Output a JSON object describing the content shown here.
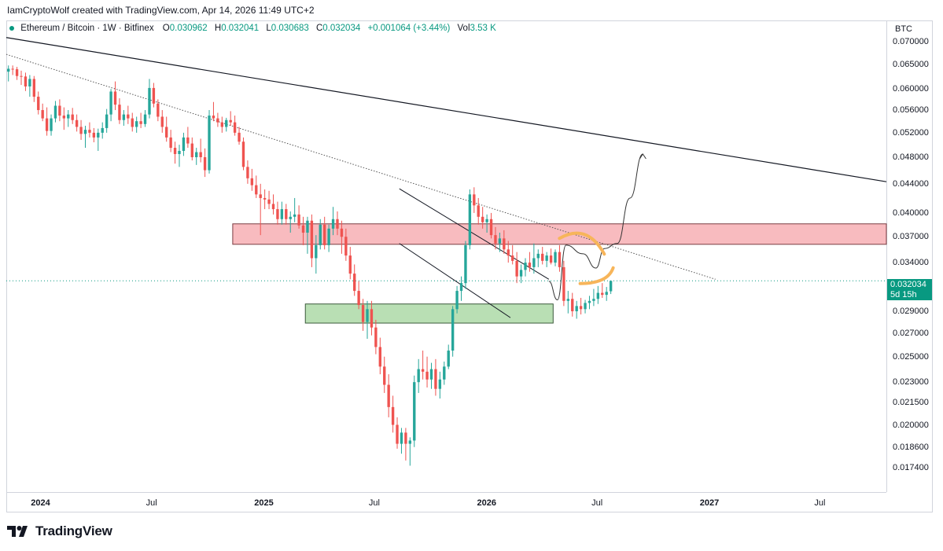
{
  "header": {
    "credit": "IamCryptoWolf created with TradingView.com, Apr 14, 2026 11:49 UTC+2"
  },
  "legend": {
    "symbol": "Ethereum / Bitcoin · 1W · Bitfinex",
    "open_label": "O",
    "open": "0.030962",
    "high_label": "H",
    "high": "0.032041",
    "low_label": "L",
    "low": "0.030683",
    "close_label": "C",
    "close": "0.032034",
    "change": "+0.001064 (+3.44%)",
    "vol_label": "Vol",
    "vol": "3.53 K"
  },
  "price_scale": {
    "unit": "BTC",
    "last_price": "0.032034",
    "countdown": "5d 15h"
  },
  "brand": {
    "name": "TradingView"
  },
  "colors": {
    "up": "#26a69a",
    "down": "#ef5350",
    "accent": "#089981",
    "resistance": "#f8bbbf",
    "support": "#b9dfb4",
    "highlight": "#f7b55a"
  },
  "chart_data": {
    "type": "candlestick",
    "title": "Ethereum / Bitcoin · 1W · Bitfinex",
    "ylabel": "BTC",
    "y_scale": "log",
    "ylim": [
      0.0166,
      0.0715
    ],
    "y_ticks": [
      "0.070000",
      "0.065000",
      "0.060000",
      "0.056000",
      "0.052000",
      "0.048000",
      "0.044000",
      "0.040000",
      "0.037000",
      "0.034000",
      "0.029000",
      "0.027000",
      "0.025000",
      "0.023000",
      "0.021500",
      "0.020000",
      "0.018600",
      "0.017400"
    ],
    "x_range": [
      "2023-11-06",
      "2027-10-18"
    ],
    "x_ticks": [
      {
        "label": "2024",
        "date": "2024-01-01",
        "bold": true
      },
      {
        "label": "Jul",
        "date": "2024-07-01",
        "bold": false
      },
      {
        "label": "2025",
        "date": "2025-01-01",
        "bold": true
      },
      {
        "label": "Jul",
        "date": "2025-07-01",
        "bold": false
      },
      {
        "label": "2026",
        "date": "2026-01-01",
        "bold": true
      },
      {
        "label": "Jul",
        "date": "2026-07-01",
        "bold": false
      },
      {
        "label": "2027",
        "date": "2027-01-01",
        "bold": true
      },
      {
        "label": "Jul",
        "date": "2027-07-01",
        "bold": false
      }
    ],
    "candles_start": "2023-11-06",
    "candles_interval_days": 7,
    "candles_ohlc": [
      [
        0.0635,
        0.0648,
        0.0615,
        0.0641
      ],
      [
        0.0641,
        0.0648,
        0.0628,
        0.064
      ],
      [
        0.064,
        0.0645,
        0.0618,
        0.0626
      ],
      [
        0.0626,
        0.0637,
        0.0608,
        0.0625
      ],
      [
        0.0625,
        0.0633,
        0.0596,
        0.0605
      ],
      [
        0.0605,
        0.0628,
        0.0585,
        0.062
      ],
      [
        0.062,
        0.0626,
        0.0575,
        0.0585
      ],
      [
        0.0585,
        0.0595,
        0.0552,
        0.056
      ],
      [
        0.056,
        0.0572,
        0.054,
        0.0545
      ],
      [
        0.0545,
        0.0565,
        0.0515,
        0.0523
      ],
      [
        0.0523,
        0.0552,
        0.0515,
        0.0545
      ],
      [
        0.0545,
        0.0577,
        0.0538,
        0.0568
      ],
      [
        0.0568,
        0.058,
        0.054,
        0.055
      ],
      [
        0.055,
        0.0565,
        0.0525,
        0.0545
      ],
      [
        0.0545,
        0.056,
        0.053,
        0.0552
      ],
      [
        0.0552,
        0.0564,
        0.0535,
        0.0542
      ],
      [
        0.0542,
        0.0552,
        0.0522,
        0.053
      ],
      [
        0.053,
        0.0542,
        0.0508,
        0.0518
      ],
      [
        0.0518,
        0.0532,
        0.0495,
        0.0525
      ],
      [
        0.0525,
        0.0538,
        0.0512,
        0.052
      ],
      [
        0.052,
        0.0528,
        0.0504,
        0.0512
      ],
      [
        0.0512,
        0.0527,
        0.049,
        0.052
      ],
      [
        0.052,
        0.0538,
        0.051,
        0.0528
      ],
      [
        0.0528,
        0.0562,
        0.052,
        0.0552
      ],
      [
        0.0552,
        0.06,
        0.054,
        0.0595
      ],
      [
        0.0595,
        0.0615,
        0.056,
        0.057
      ],
      [
        0.057,
        0.0582,
        0.0535,
        0.0542
      ],
      [
        0.0542,
        0.056,
        0.0532,
        0.0552
      ],
      [
        0.0552,
        0.0568,
        0.0535,
        0.0545
      ],
      [
        0.0545,
        0.0555,
        0.0522,
        0.053
      ],
      [
        0.053,
        0.0548,
        0.052,
        0.054
      ],
      [
        0.054,
        0.0555,
        0.0528,
        0.0535
      ],
      [
        0.0535,
        0.056,
        0.053,
        0.0552
      ],
      [
        0.0552,
        0.062,
        0.0545,
        0.0602
      ],
      [
        0.0602,
        0.0612,
        0.0565,
        0.0572
      ],
      [
        0.0572,
        0.058,
        0.054,
        0.0548
      ],
      [
        0.0548,
        0.056,
        0.052,
        0.053
      ],
      [
        0.053,
        0.0548,
        0.0505,
        0.0512
      ],
      [
        0.0512,
        0.0525,
        0.0488,
        0.0495
      ],
      [
        0.0495,
        0.0505,
        0.047,
        0.0485
      ],
      [
        0.0485,
        0.05,
        0.0465,
        0.049
      ],
      [
        0.049,
        0.052,
        0.0482,
        0.0512
      ],
      [
        0.0512,
        0.053,
        0.0495,
        0.0502
      ],
      [
        0.0502,
        0.0512,
        0.0475,
        0.048
      ],
      [
        0.048,
        0.0495,
        0.0468,
        0.0488
      ],
      [
        0.0488,
        0.051,
        0.0472,
        0.048
      ],
      [
        0.048,
        0.0494,
        0.045,
        0.046
      ],
      [
        0.046,
        0.056,
        0.0455,
        0.055
      ],
      [
        0.055,
        0.0575,
        0.054,
        0.0545
      ],
      [
        0.0545,
        0.0555,
        0.053,
        0.0538
      ],
      [
        0.0538,
        0.0548,
        0.052,
        0.053
      ],
      [
        0.053,
        0.0546,
        0.0522,
        0.0542
      ],
      [
        0.0542,
        0.0558,
        0.0532,
        0.0538
      ],
      [
        0.0538,
        0.055,
        0.0515,
        0.052
      ],
      [
        0.052,
        0.053,
        0.05,
        0.0505
      ],
      [
        0.0505,
        0.0512,
        0.046,
        0.0465
      ],
      [
        0.0465,
        0.0475,
        0.044,
        0.0448
      ],
      [
        0.0448,
        0.0462,
        0.043,
        0.0438
      ],
      [
        0.0438,
        0.0452,
        0.042,
        0.0425
      ],
      [
        0.0425,
        0.044,
        0.0372,
        0.042
      ],
      [
        0.042,
        0.0432,
        0.0405,
        0.0418
      ],
      [
        0.0418,
        0.043,
        0.0405,
        0.0412
      ],
      [
        0.0412,
        0.0425,
        0.0398,
        0.0405
      ],
      [
        0.0405,
        0.0415,
        0.0385,
        0.0392
      ],
      [
        0.0392,
        0.0415,
        0.0385,
        0.0405
      ],
      [
        0.0405,
        0.0412,
        0.0385,
        0.0392
      ],
      [
        0.0392,
        0.0402,
        0.0375,
        0.0395
      ],
      [
        0.0395,
        0.042,
        0.0388,
        0.0398
      ],
      [
        0.0398,
        0.041,
        0.038,
        0.0384
      ],
      [
        0.0384,
        0.0395,
        0.036,
        0.0375
      ],
      [
        0.0375,
        0.0395,
        0.035,
        0.039
      ],
      [
        0.039,
        0.0398,
        0.0335,
        0.0345
      ],
      [
        0.0345,
        0.0372,
        0.0328,
        0.036
      ],
      [
        0.036,
        0.0392,
        0.0355,
        0.0385
      ],
      [
        0.0385,
        0.0395,
        0.0355,
        0.036
      ],
      [
        0.036,
        0.0385,
        0.0352,
        0.038
      ],
      [
        0.038,
        0.0408,
        0.0372,
        0.0392
      ],
      [
        0.0392,
        0.0402,
        0.0372,
        0.038
      ],
      [
        0.038,
        0.039,
        0.035,
        0.037
      ],
      [
        0.037,
        0.038,
        0.0342,
        0.0348
      ],
      [
        0.0348,
        0.0358,
        0.0322,
        0.0328
      ],
      [
        0.0328,
        0.0338,
        0.0305,
        0.031
      ],
      [
        0.031,
        0.032,
        0.0292,
        0.0296
      ],
      [
        0.0296,
        0.0302,
        0.0272,
        0.028
      ],
      [
        0.028,
        0.03,
        0.0265,
        0.0292
      ],
      [
        0.0292,
        0.03,
        0.0268,
        0.0275
      ],
      [
        0.0275,
        0.0282,
        0.0252,
        0.0258
      ],
      [
        0.0258,
        0.0266,
        0.0236,
        0.0242
      ],
      [
        0.0242,
        0.025,
        0.0222,
        0.0228
      ],
      [
        0.0228,
        0.0236,
        0.0205,
        0.0212
      ],
      [
        0.0212,
        0.022,
        0.0195,
        0.02
      ],
      [
        0.02,
        0.0205,
        0.0185,
        0.0188
      ],
      [
        0.0188,
        0.0198,
        0.0182,
        0.0195
      ],
      [
        0.0195,
        0.0198,
        0.0178,
        0.0188
      ],
      [
        0.0188,
        0.0192,
        0.0175,
        0.019
      ],
      [
        0.019,
        0.0235,
        0.0186,
        0.023
      ],
      [
        0.023,
        0.0248,
        0.0222,
        0.024
      ],
      [
        0.024,
        0.0255,
        0.0232,
        0.0238
      ],
      [
        0.0238,
        0.025,
        0.0226,
        0.0232
      ],
      [
        0.0232,
        0.0245,
        0.0225,
        0.024
      ],
      [
        0.024,
        0.0248,
        0.022,
        0.0225
      ],
      [
        0.0225,
        0.0238,
        0.0218,
        0.0232
      ],
      [
        0.0232,
        0.0246,
        0.0228,
        0.0242
      ],
      [
        0.0242,
        0.026,
        0.024,
        0.0255
      ],
      [
        0.0255,
        0.0295,
        0.025,
        0.0292
      ],
      [
        0.0292,
        0.0315,
        0.0288,
        0.031
      ],
      [
        0.031,
        0.0325,
        0.03,
        0.0318
      ],
      [
        0.0318,
        0.0365,
        0.0312,
        0.036
      ],
      [
        0.036,
        0.0432,
        0.0355,
        0.0425
      ],
      [
        0.0425,
        0.0435,
        0.04,
        0.041
      ],
      [
        0.041,
        0.042,
        0.0385,
        0.0395
      ],
      [
        0.0395,
        0.0408,
        0.038,
        0.0388
      ],
      [
        0.0388,
        0.0398,
        0.0375,
        0.0392
      ],
      [
        0.0392,
        0.04,
        0.0368,
        0.0372
      ],
      [
        0.0372,
        0.0382,
        0.0355,
        0.0362
      ],
      [
        0.0362,
        0.0375,
        0.0352,
        0.0368
      ],
      [
        0.0368,
        0.0378,
        0.035,
        0.0355
      ],
      [
        0.0355,
        0.0365,
        0.034,
        0.0348
      ],
      [
        0.0348,
        0.036,
        0.0338,
        0.0342
      ],
      [
        0.0342,
        0.0352,
        0.0318,
        0.0325
      ],
      [
        0.0325,
        0.0338,
        0.0318,
        0.0332
      ],
      [
        0.0332,
        0.0345,
        0.0325,
        0.034
      ],
      [
        0.034,
        0.0352,
        0.033,
        0.0335
      ],
      [
        0.0335,
        0.0362,
        0.0328,
        0.0345
      ],
      [
        0.0345,
        0.0355,
        0.0335,
        0.035
      ],
      [
        0.035,
        0.0358,
        0.0338,
        0.0342
      ],
      [
        0.0342,
        0.0352,
        0.0335,
        0.0348
      ],
      [
        0.0348,
        0.0356,
        0.0338,
        0.034
      ],
      [
        0.034,
        0.0355,
        0.0336,
        0.0352
      ],
      [
        0.0352,
        0.036,
        0.033,
        0.0335
      ],
      [
        0.0335,
        0.0342,
        0.0295,
        0.03
      ],
      [
        0.03,
        0.031,
        0.0288,
        0.0302
      ],
      [
        0.0302,
        0.0308,
        0.0285,
        0.029
      ],
      [
        0.029,
        0.03,
        0.0283,
        0.0295
      ],
      [
        0.0295,
        0.0303,
        0.0287,
        0.0292
      ],
      [
        0.0292,
        0.0301,
        0.0288,
        0.0298
      ],
      [
        0.0298,
        0.0305,
        0.0292,
        0.03
      ],
      [
        0.03,
        0.0312,
        0.0295,
        0.0302
      ],
      [
        0.0302,
        0.0315,
        0.0297,
        0.0308
      ],
      [
        0.0308,
        0.0318,
        0.0303,
        0.0306
      ],
      [
        0.0306,
        0.0314,
        0.03,
        0.0309
      ],
      [
        0.030962,
        0.032041,
        0.030683,
        0.032034
      ]
    ],
    "annotations": {
      "resistance_zone": {
        "from_date": "2024-11-11",
        "to_date": "2027-10-18",
        "low": 0.0361,
        "high": 0.0386,
        "label": ""
      },
      "support_zone": {
        "from_date": "2025-03-10",
        "to_date": "2026-04-20",
        "low": 0.0279,
        "high": 0.0297,
        "label": ""
      },
      "long_trendline": {
        "p1": {
          "date": "2023-11-06",
          "price": 0.071
        },
        "p2": {
          "date": "2027-10-18",
          "price": 0.0443
        }
      },
      "dotted_trendline": {
        "p1": {
          "date": "2023-11-06",
          "price": 0.0672
        },
        "p2": {
          "date": "2027-01-11",
          "price": 0.0322
        }
      },
      "falling_channel": {
        "upper": [
          {
            "date": "2025-08-11",
            "price": 0.0433
          },
          {
            "date": "2026-04-13",
            "price": 0.0322
          }
        ],
        "lower": [
          {
            "date": "2025-08-11",
            "price": 0.0362
          },
          {
            "date": "2026-02-09",
            "price": 0.0284
          }
        ]
      },
      "projection_path": [
        {
          "date": "2026-04-13",
          "price": 0.032
        },
        {
          "date": "2026-04-27",
          "price": 0.0301
        },
        {
          "date": "2026-05-11",
          "price": 0.036
        },
        {
          "date": "2026-06-08",
          "price": 0.035
        },
        {
          "date": "2026-06-29",
          "price": 0.0334
        },
        {
          "date": "2026-07-13",
          "price": 0.0356
        },
        {
          "date": "2026-08-03",
          "price": 0.0362
        },
        {
          "date": "2026-08-24",
          "price": 0.042
        },
        {
          "date": "2026-09-14",
          "price": 0.0485
        }
      ],
      "highlight_arcs": [
        {
          "center_date": "2026-06-08",
          "center_price": 0.037
        },
        {
          "center_date": "2026-06-29",
          "center_price": 0.033
        }
      ],
      "last_price_line": 0.032034
    }
  }
}
